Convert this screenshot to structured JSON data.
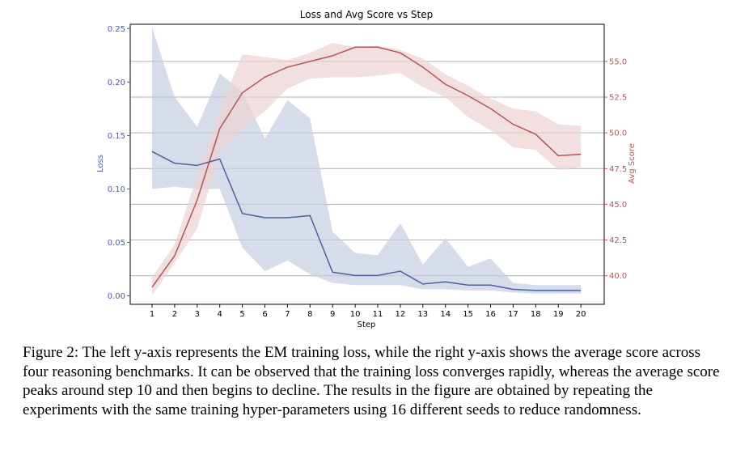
{
  "chart_data": {
    "type": "line",
    "title": "Loss and Avg Score vs Step",
    "xlabel": "Step",
    "ylabel_left": "Loss",
    "ylabel_right": "Avg Score",
    "x": [
      1,
      2,
      3,
      4,
      5,
      6,
      7,
      8,
      9,
      10,
      11,
      12,
      13,
      14,
      15,
      16,
      17,
      18,
      19,
      20
    ],
    "xticks": [
      "1",
      "2",
      "3",
      "4",
      "5",
      "6",
      "7",
      "8",
      "9",
      "10",
      "11",
      "12",
      "13",
      "14",
      "15",
      "16",
      "17",
      "18",
      "19",
      "20"
    ],
    "y_left_lim": [
      -0.008,
      0.254
    ],
    "y_right_lim": [
      38.0,
      57.6
    ],
    "y_left_ticks": [
      "0.00",
      "0.05",
      "0.10",
      "0.15",
      "0.20",
      "0.25"
    ],
    "y_left_tick_values": [
      0.0,
      0.05,
      0.1,
      0.15,
      0.2,
      0.25
    ],
    "y_right_ticks": [
      "40.0",
      "42.5",
      "45.0",
      "47.5",
      "50.0",
      "52.5",
      "55.0"
    ],
    "y_right_tick_values": [
      40.0,
      42.5,
      45.0,
      47.5,
      50.0,
      52.5,
      55.0
    ],
    "grid": "horizontal lines at right-axis ticks",
    "series": [
      {
        "axis": "left",
        "color": "#4c5f9e",
        "band_color": "#c6cde2",
        "values": [
          0.135,
          0.124,
          0.122,
          0.128,
          0.077,
          0.073,
          0.073,
          0.075,
          0.022,
          0.019,
          0.019,
          0.023,
          0.011,
          0.013,
          0.01,
          0.01,
          0.006,
          0.005,
          0.005,
          0.005
        ],
        "lower": [
          0.1,
          0.102,
          0.1,
          0.1,
          0.045,
          0.023,
          0.033,
          0.02,
          0.012,
          0.01,
          0.01,
          0.01,
          0.006,
          0.006,
          0.005,
          0.005,
          0.003,
          0.002,
          0.002,
          0.002
        ],
        "upper": [
          0.251,
          0.186,
          0.158,
          0.208,
          0.191,
          0.147,
          0.183,
          0.166,
          0.06,
          0.04,
          0.038,
          0.068,
          0.029,
          0.054,
          0.027,
          0.035,
          0.012,
          0.01,
          0.01,
          0.01
        ]
      },
      {
        "axis": "right",
        "color": "#b55456",
        "band_color": "#ecd1d1",
        "values": [
          39.2,
          41.4,
          45.3,
          50.3,
          52.8,
          53.9,
          54.6,
          55.0,
          55.4,
          56.0,
          56.0,
          55.6,
          54.6,
          53.4,
          52.6,
          51.7,
          50.6,
          49.9,
          48.4,
          48.5
        ],
        "lower": [
          38.6,
          40.9,
          43.3,
          48.7,
          50.3,
          51.5,
          53.1,
          53.8,
          53.9,
          53.9,
          54.0,
          54.2,
          53.2,
          52.5,
          51.1,
          50.2,
          49.0,
          48.8,
          47.4,
          47.6
        ],
        "upper": [
          39.9,
          42.2,
          47.0,
          51.6,
          55.5,
          55.3,
          55.1,
          55.6,
          56.3,
          56.0,
          56.1,
          55.8,
          55.2,
          54.1,
          53.3,
          52.4,
          51.7,
          51.5,
          50.6,
          50.5
        ]
      }
    ]
  },
  "caption": "Figure 2: The left y-axis represents the EM training loss, while the right y-axis shows the average score across four reasoning benchmarks. It can be observed that the training loss converges rapidly, whereas the average score peaks around step 10 and then begins to decline. The results in the figure are obtained by repeating the experiments with the same training hyper-parameters using 16 different seeds to reduce randomness."
}
